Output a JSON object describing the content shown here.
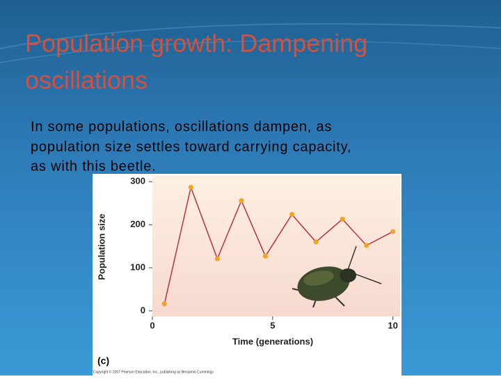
{
  "slide": {
    "title_lines": [
      "Population growth: Dampening",
      "oscillations"
    ],
    "body_lines": [
      "In some populations, oscillations dampen, as",
      "population size  settles toward carrying capacity,",
      "as with this beetle."
    ]
  },
  "chart_data": {
    "type": "line",
    "panel_label": "(c)",
    "x_label": "Time (generations)",
    "y_label": "Population size",
    "credit": "Copyright © 2007 Pearson Education, Inc., publishing as Benjamin Cummings",
    "x": [
      0.5,
      1.6,
      2.7,
      3.7,
      4.7,
      5.8,
      6.8,
      7.9,
      8.9,
      10
    ],
    "values": [
      16,
      287,
      121,
      256,
      127,
      224,
      160,
      213,
      152,
      184
    ],
    "color": "#b83240",
    "marker_color": "#f5a21e",
    "xlim": [
      0,
      10.3
    ],
    "ylim": [
      -13,
      315
    ],
    "xticks": [
      0,
      5,
      10
    ],
    "yticks": [
      0,
      100,
      200,
      300
    ]
  }
}
